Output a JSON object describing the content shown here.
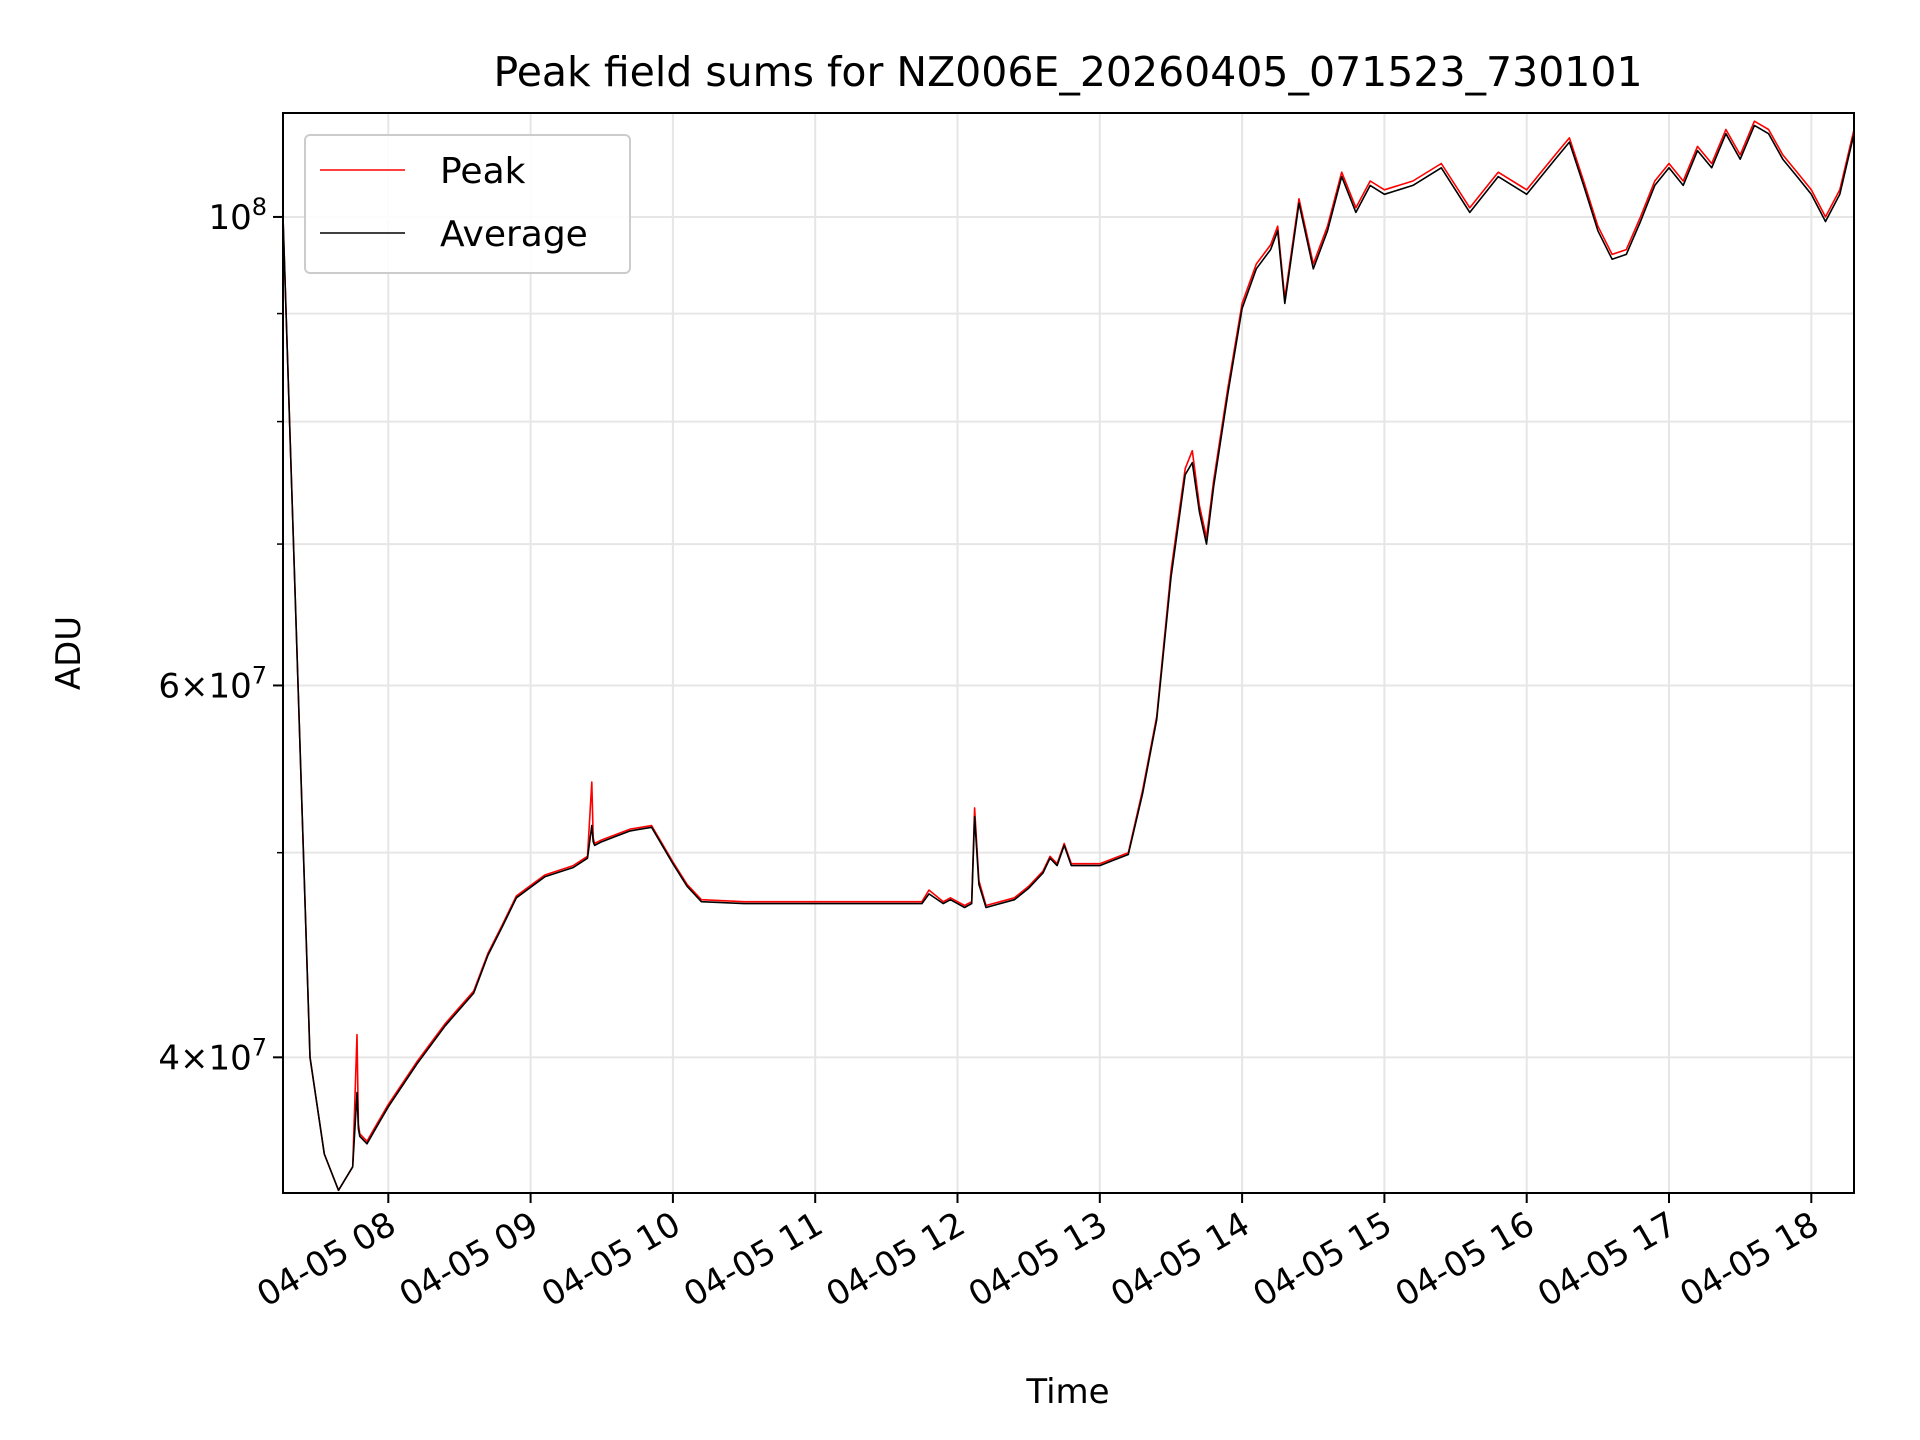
{
  "chart_data": {
    "type": "line",
    "title": "Peak field sums for NZ006E_20260405_071523_730101",
    "xlabel": "Time",
    "ylabel": "ADU",
    "yscale": "log",
    "xlim": [
      7.26,
      18.3
    ],
    "ylim": [
      34500000,
      112000000
    ],
    "grid": true,
    "legend_position": "top-left",
    "x_tick_values": [
      8,
      9,
      10,
      11,
      12,
      13,
      14,
      15,
      16,
      17,
      18
    ],
    "x_tick_labels": [
      "04-05 08",
      "04-05 09",
      "04-05 10",
      "04-05 11",
      "04-05 12",
      "04-05 13",
      "04-05 14",
      "04-05 15",
      "04-05 16",
      "04-05 17",
      "04-05 18"
    ],
    "y_major_ticks": [
      {
        "value": 40000000,
        "mantissa": "4",
        "exp": "7"
      },
      {
        "value": 60000000,
        "mantissa": "6",
        "exp": "7"
      },
      {
        "value": 100000000,
        "mantissa": "",
        "exp": "8"
      }
    ],
    "y_minor_ticks": [
      50000000,
      70000000,
      80000000,
      90000000
    ],
    "series": [
      {
        "name": "Peak",
        "color": "#ff0000",
        "x": [
          7.26,
          7.45,
          7.55,
          7.65,
          7.75,
          7.78,
          7.79,
          7.8,
          7.85,
          7.9,
          8.0,
          8.2,
          8.4,
          8.6,
          8.7,
          8.8,
          8.9,
          9.1,
          9.3,
          9.4,
          9.43,
          9.44,
          9.45,
          9.5,
          9.6,
          9.7,
          9.85,
          10.0,
          10.1,
          10.2,
          10.5,
          10.8,
          11.0,
          11.3,
          11.5,
          11.75,
          11.8,
          11.9,
          11.95,
          12.0,
          12.05,
          12.1,
          12.12,
          12.15,
          12.2,
          12.4,
          12.5,
          12.6,
          12.65,
          12.7,
          12.75,
          12.8,
          13.0,
          13.1,
          13.2,
          13.3,
          13.4,
          13.5,
          13.6,
          13.65,
          13.7,
          13.75,
          13.8,
          13.9,
          14.0,
          14.1,
          14.2,
          14.25,
          14.3,
          14.4,
          14.5,
          14.6,
          14.7,
          14.8,
          14.9,
          15.0,
          15.2,
          15.4,
          15.6,
          15.8,
          16.0,
          16.2,
          16.3,
          16.4,
          16.5,
          16.6,
          16.7,
          16.8,
          16.9,
          17.0,
          17.1,
          17.2,
          17.3,
          17.4,
          17.5,
          17.6,
          17.7,
          17.8,
          17.9,
          18.0,
          18.1,
          18.2,
          18.3
        ],
        "y": [
          100000000,
          40000000,
          36000000,
          34600000,
          35500000,
          41000000,
          37200000,
          36800000,
          36500000,
          37000000,
          38000000,
          39800000,
          41500000,
          43000000,
          44800000,
          46200000,
          47700000,
          48800000,
          49300000,
          49800000,
          54000000,
          50800000,
          50500000,
          50700000,
          51000000,
          51300000,
          51500000,
          49500000,
          48300000,
          47500000,
          47400000,
          47400000,
          47400000,
          47400000,
          47400000,
          47400000,
          48000000,
          47400000,
          47600000,
          47400000,
          47200000,
          47400000,
          52500000,
          48500000,
          47200000,
          47600000,
          48200000,
          49000000,
          49800000,
          49400000,
          50500000,
          49400000,
          49400000,
          49700000,
          50000000,
          53500000,
          58000000,
          68000000,
          76000000,
          77500000,
          73000000,
          70500000,
          75000000,
          83000000,
          91000000,
          95000000,
          97000000,
          99000000,
          91500000,
          102000000,
          95000000,
          99000000,
          105000000,
          101000000,
          104000000,
          103000000,
          104000000,
          106000000,
          101000000,
          105000000,
          103000000,
          107000000,
          109000000,
          104000000,
          99000000,
          96000000,
          96500000,
          100000000,
          104000000,
          106000000,
          104000000,
          108000000,
          106000000,
          110000000,
          107000000,
          111000000,
          110000000,
          107000000,
          105000000,
          103000000,
          100000000,
          103000000,
          110000000
        ]
      },
      {
        "name": "Average",
        "color": "#000000",
        "x": [
          7.26,
          7.45,
          7.55,
          7.65,
          7.75,
          7.78,
          7.79,
          7.8,
          7.85,
          7.9,
          8.0,
          8.2,
          8.4,
          8.6,
          8.7,
          8.8,
          8.9,
          9.1,
          9.3,
          9.4,
          9.43,
          9.44,
          9.45,
          9.5,
          9.6,
          9.7,
          9.85,
          10.0,
          10.1,
          10.2,
          10.5,
          10.8,
          11.0,
          11.3,
          11.5,
          11.75,
          11.8,
          11.9,
          11.95,
          12.0,
          12.05,
          12.1,
          12.12,
          12.15,
          12.2,
          12.4,
          12.5,
          12.6,
          12.65,
          12.7,
          12.75,
          12.8,
          13.0,
          13.1,
          13.2,
          13.3,
          13.4,
          13.5,
          13.6,
          13.65,
          13.7,
          13.75,
          13.8,
          13.9,
          14.0,
          14.1,
          14.2,
          14.25,
          14.3,
          14.4,
          14.5,
          14.6,
          14.7,
          14.8,
          14.9,
          15.0,
          15.2,
          15.4,
          15.6,
          15.8,
          16.0,
          16.2,
          16.3,
          16.4,
          16.5,
          16.6,
          16.7,
          16.8,
          16.9,
          17.0,
          17.1,
          17.2,
          17.3,
          17.4,
          17.5,
          17.6,
          17.7,
          17.8,
          17.9,
          18.0,
          18.1,
          18.2,
          18.3
        ],
        "y": [
          100000000,
          40000000,
          36000000,
          34600000,
          35500000,
          38500000,
          37000000,
          36700000,
          36400000,
          36900000,
          37900000,
          39700000,
          41400000,
          42900000,
          44700000,
          46100000,
          47600000,
          48700000,
          49200000,
          49700000,
          51500000,
          50600000,
          50400000,
          50600000,
          50900000,
          51200000,
          51400000,
          49400000,
          48200000,
          47400000,
          47300000,
          47300000,
          47300000,
          47300000,
          47300000,
          47300000,
          47800000,
          47300000,
          47500000,
          47300000,
          47100000,
          47300000,
          52000000,
          48300000,
          47100000,
          47500000,
          48100000,
          48900000,
          49700000,
          49300000,
          50400000,
          49300000,
          49300000,
          49600000,
          49900000,
          53300000,
          57800000,
          67500000,
          75500000,
          76500000,
          72500000,
          70000000,
          74500000,
          82500000,
          90500000,
          94500000,
          96500000,
          98500000,
          91000000,
          101500000,
          94500000,
          98500000,
          104500000,
          100500000,
          103500000,
          102500000,
          103500000,
          105500000,
          100500000,
          104500000,
          102500000,
          106500000,
          108500000,
          103500000,
          98500000,
          95500000,
          96000000,
          99500000,
          103500000,
          105500000,
          103500000,
          107500000,
          105500000,
          109500000,
          106500000,
          110500000,
          109500000,
          106500000,
          104500000,
          102500000,
          99500000,
          102500000,
          109500000
        ]
      }
    ]
  }
}
